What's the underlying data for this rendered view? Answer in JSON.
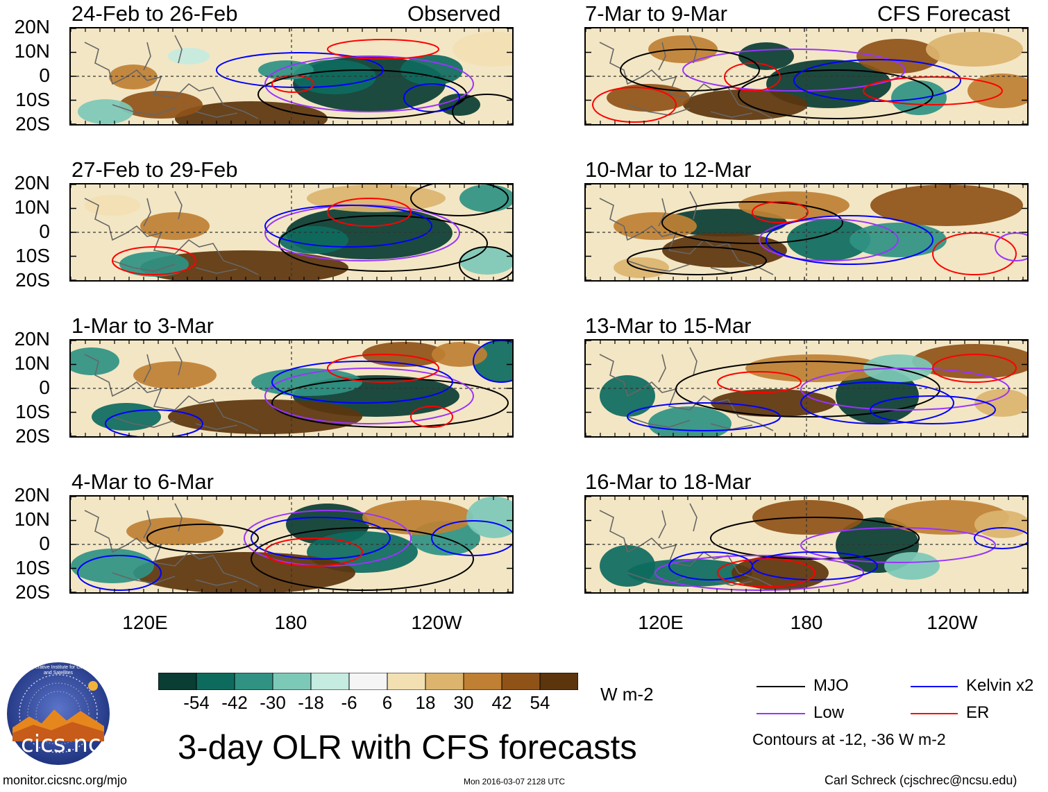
{
  "panels": [
    {
      "id": "p1",
      "title": "24-Feb to 26-Feb",
      "tag": "Observed"
    },
    {
      "id": "p2",
      "title": "27-Feb to 29-Feb",
      "tag": ""
    },
    {
      "id": "p3",
      "title": "1-Mar to 3-Mar",
      "tag": ""
    },
    {
      "id": "p4",
      "title": "4-Mar to 6-Mar",
      "tag": ""
    },
    {
      "id": "p5",
      "title": "7-Mar to 9-Mar",
      "tag": "CFS Forecast"
    },
    {
      "id": "p6",
      "title": "10-Mar to 12-Mar",
      "tag": ""
    },
    {
      "id": "p7",
      "title": "13-Mar to 15-Mar",
      "tag": ""
    },
    {
      "id": "p8",
      "title": "16-Mar to 18-Mar",
      "tag": ""
    }
  ],
  "lat_labels": [
    "20N",
    "10N",
    "0",
    "10S",
    "20S"
  ],
  "lon_labels": [
    "120E",
    "180",
    "120W"
  ],
  "chart_data": {
    "type": "heatmap",
    "title": "3-day OLR with CFS forecasts",
    "units": "W m-2",
    "colorbar": {
      "ticks": [
        "-54",
        "-42",
        "-30",
        "-18",
        "-6",
        "6",
        "18",
        "30",
        "42",
        "54"
      ],
      "colors": [
        "#0a3d33",
        "#0d6b5e",
        "#2f9283",
        "#7dc9b8",
        "#c6ebe0",
        "#f5f5f5",
        "#f3e0b2",
        "#dcb46e",
        "#bf8033",
        "#8f5318",
        "#5c350d"
      ]
    },
    "legend": [
      {
        "label": "MJO",
        "color": "#000000"
      },
      {
        "label": "Kelvin x2",
        "color": "#0000ff"
      },
      {
        "label": "Low",
        "color": "#9933ff"
      },
      {
        "label": "ER",
        "color": "#ff0000"
      }
    ],
    "contour_note": "Contours at -12, -36 W m-2"
  },
  "footer": {
    "left": "monitor.cicsnc.org/mjo",
    "center": "Mon 2016-03-07 2128 UTC",
    "right": "Carl Schreck (cjschrec@ncsu.edu)"
  },
  "logo": {
    "wordmark": "cics.nc",
    "ring_text": "Cooperative Institute for Climate and Satellites"
  }
}
